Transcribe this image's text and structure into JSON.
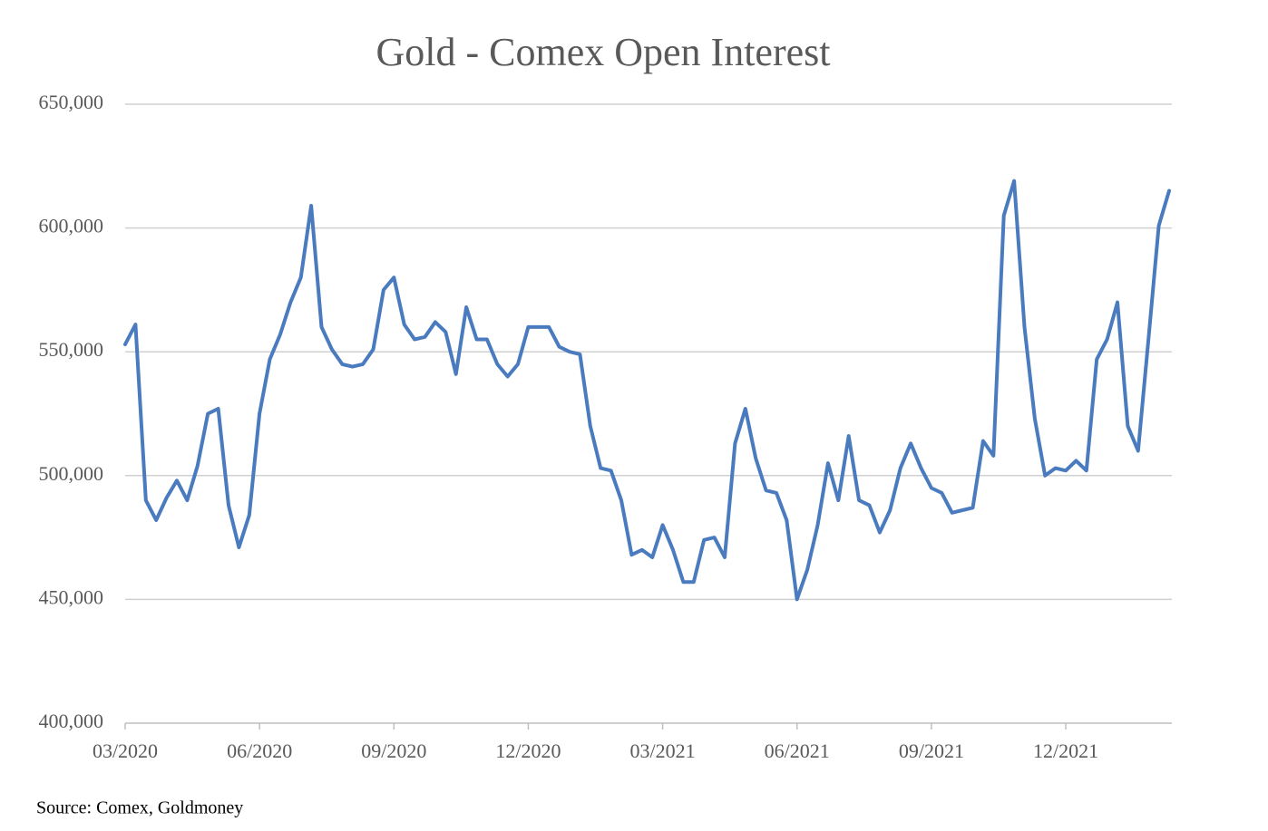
{
  "chart_data": {
    "type": "line",
    "title": "Gold - Comex Open Interest",
    "source": "Source: Comex, Goldmoney",
    "categories": [
      "03/2020",
      null,
      null,
      null,
      null,
      null,
      null,
      null,
      null,
      null,
      null,
      null,
      null,
      "06/2020",
      null,
      null,
      null,
      null,
      null,
      null,
      null,
      null,
      null,
      null,
      null,
      null,
      "09/2020",
      null,
      null,
      null,
      null,
      null,
      null,
      null,
      null,
      null,
      null,
      null,
      null,
      "12/2020",
      null,
      null,
      null,
      null,
      null,
      null,
      null,
      null,
      null,
      null,
      null,
      null,
      "03/2021",
      null,
      null,
      null,
      null,
      null,
      null,
      null,
      null,
      null,
      null,
      null,
      null,
      "06/2021",
      null,
      null,
      null,
      null,
      null,
      null,
      null,
      null,
      null,
      null,
      null,
      null,
      "09/2021",
      null,
      null,
      null,
      null,
      null,
      null,
      null,
      null,
      null,
      null,
      null,
      null,
      "12/2021",
      null,
      null,
      null,
      null,
      null,
      null,
      null,
      null,
      null,
      null
    ],
    "series": [
      {
        "name": "Open Interest",
        "color": "#4a7bbf",
        "values": [
          553,
          561,
          490,
          482,
          491,
          498,
          490,
          504,
          525,
          527,
          488,
          471,
          484,
          525,
          547,
          557,
          570,
          580,
          609,
          560,
          551,
          545,
          544,
          545,
          551,
          575,
          580,
          561,
          555,
          556,
          562,
          558,
          541,
          568,
          555,
          555,
          545,
          540,
          545,
          560,
          560,
          560,
          552,
          550,
          549,
          520,
          503,
          502,
          490,
          468,
          470,
          467,
          480,
          470,
          457,
          457,
          474,
          475,
          467,
          513,
          527,
          507,
          494,
          493,
          482,
          450,
          462,
          480,
          505,
          490,
          516,
          490,
          488,
          477,
          486,
          503,
          513,
          503,
          495,
          493,
          485,
          486,
          487,
          514,
          508,
          605,
          619,
          560,
          523,
          500,
          503,
          502,
          506,
          502,
          547,
          555,
          570,
          520,
          510,
          555,
          601,
          615
        ]
      }
    ],
    "value_scale": 1000,
    "ylim": [
      400000,
      650000
    ],
    "yticks": [
      {
        "value": 400000,
        "label": "400,000"
      },
      {
        "value": 450000,
        "label": "450,000"
      },
      {
        "value": 500000,
        "label": "500,000"
      },
      {
        "value": 550000,
        "label": "550,000"
      },
      {
        "value": 600000,
        "label": "600,000"
      },
      {
        "value": 650000,
        "label": "650,000"
      }
    ],
    "grid": true
  }
}
